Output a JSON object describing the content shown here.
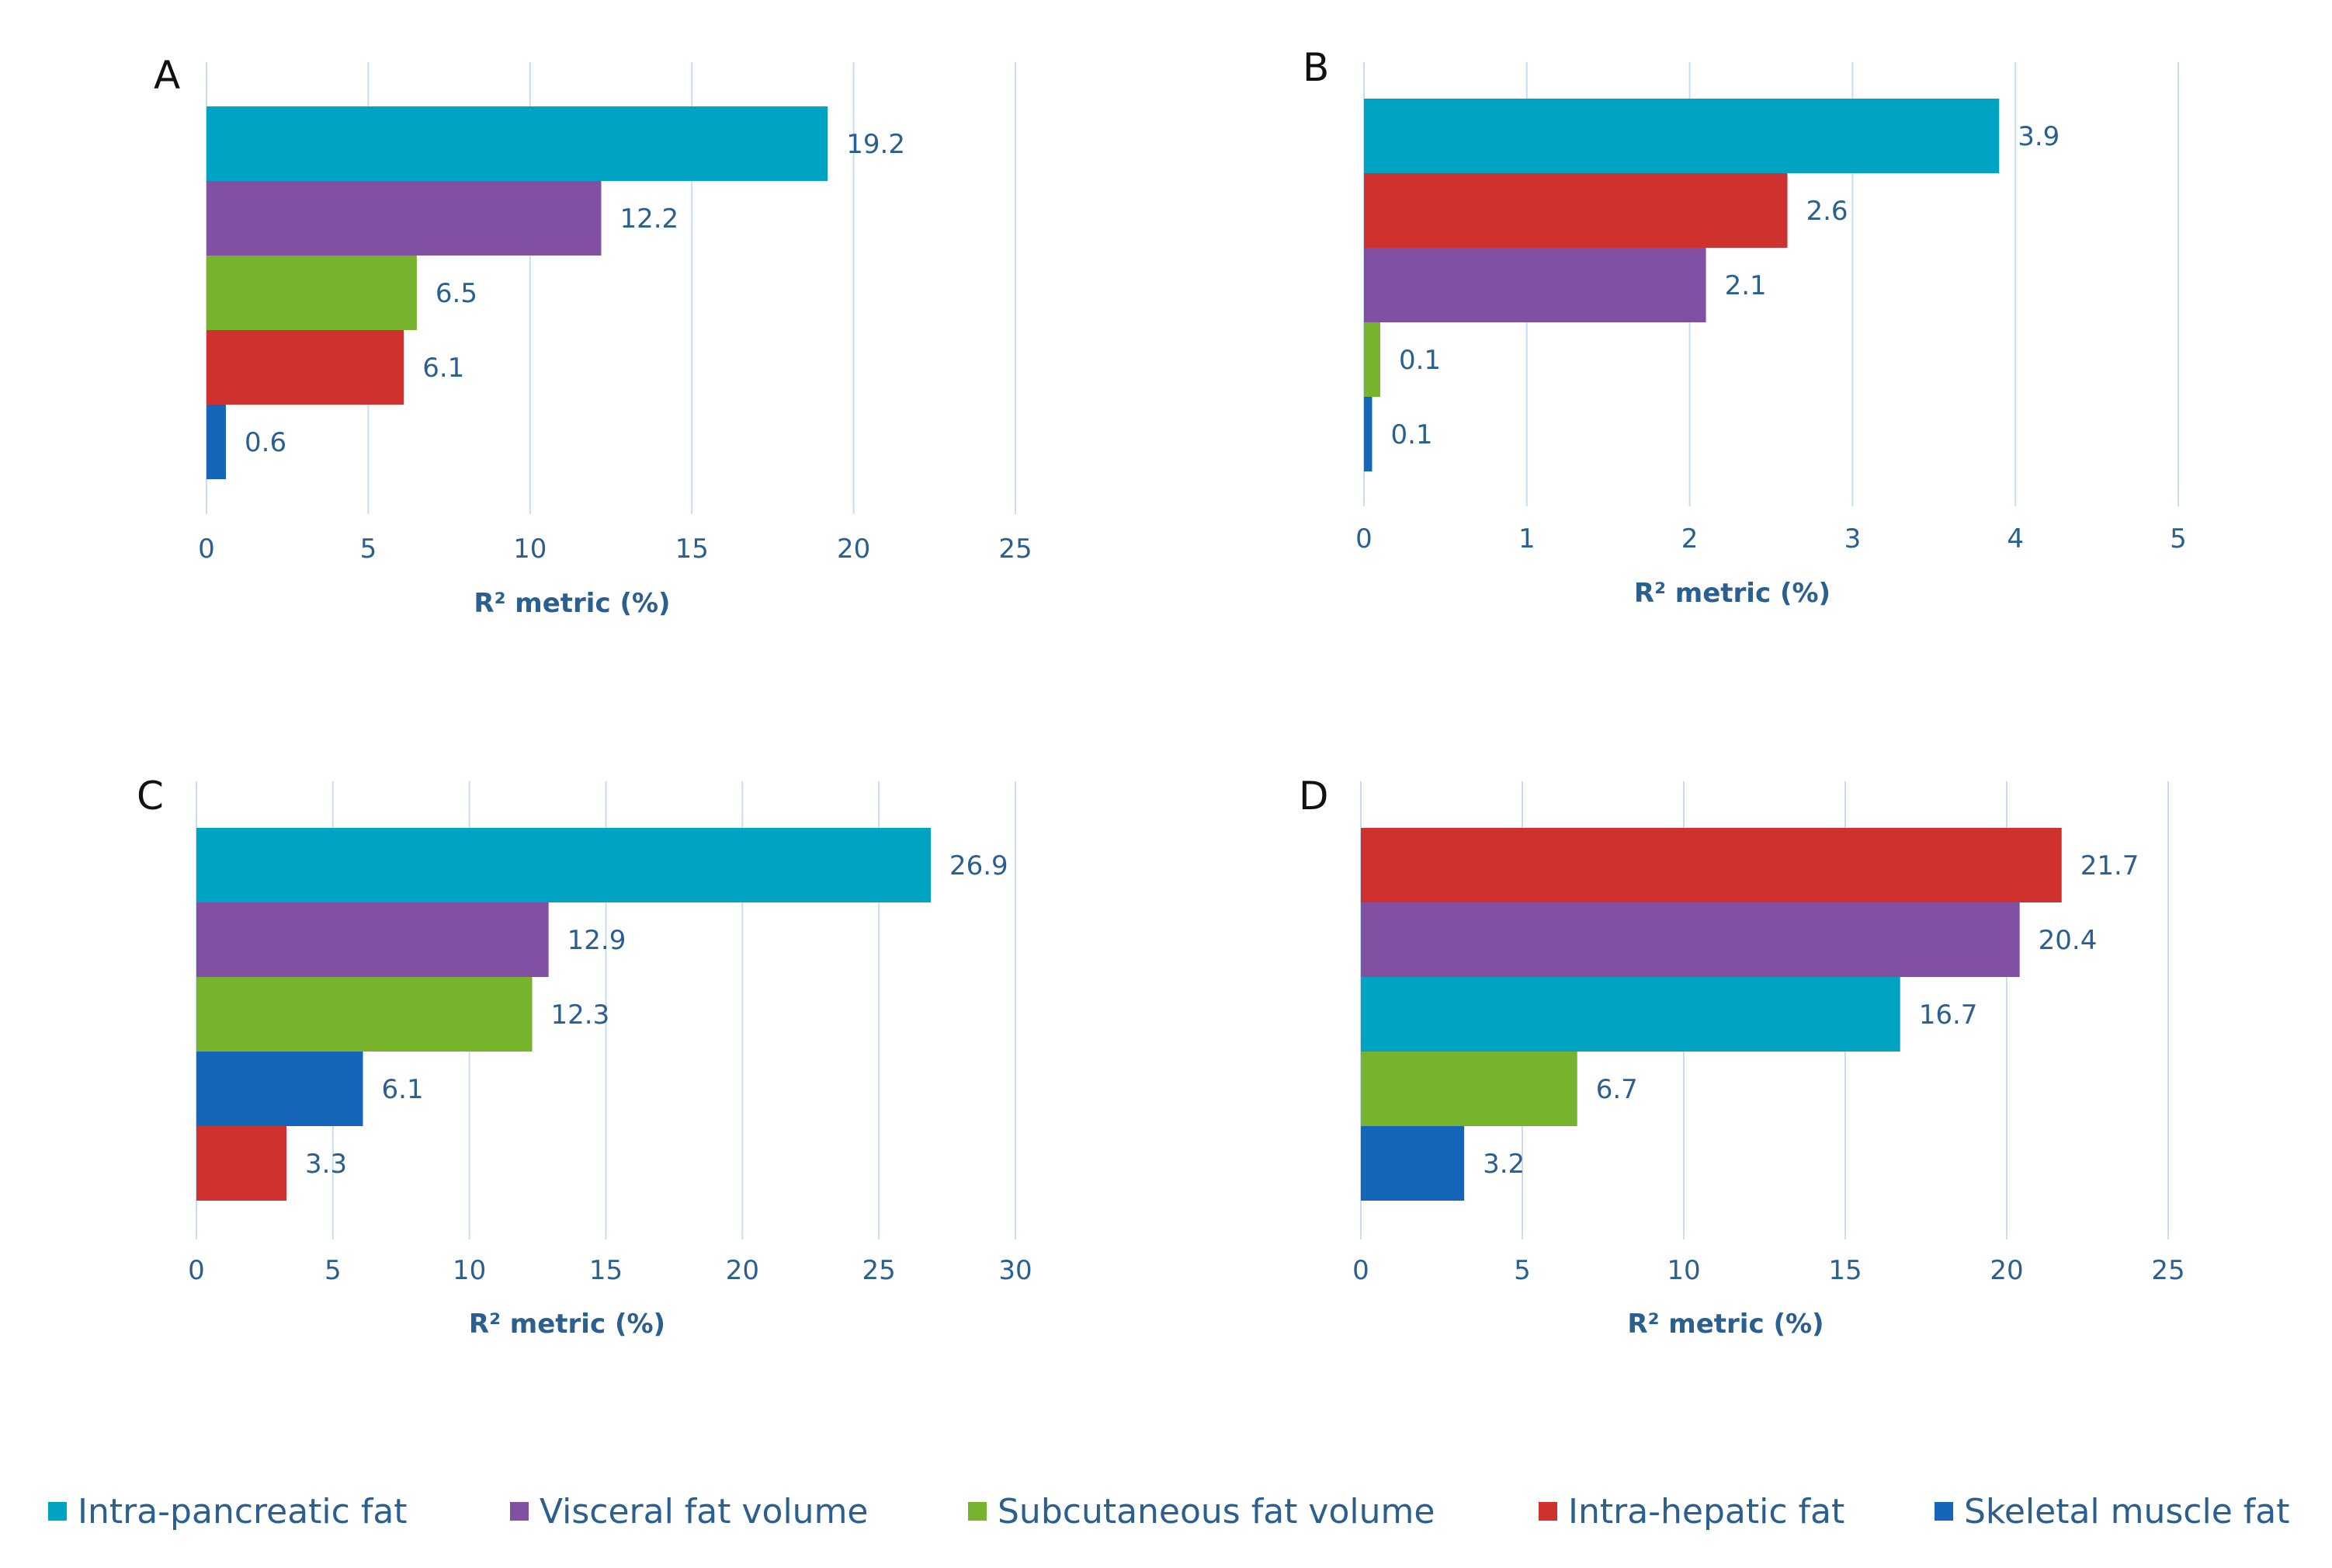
{
  "colors": {
    "intra_pancreatic": "#00a3c2",
    "visceral": "#8250a2",
    "subcutaneous": "#78b32e",
    "intra_hepatic": "#cf312e",
    "skeletal": "#1565b8",
    "grid": "#c9deef",
    "axis_text": "#2a5f8f"
  },
  "legend": [
    {
      "label": "Intra-pancreatic fat",
      "color": "#00a3c2"
    },
    {
      "label": "Visceral fat volume",
      "color": "#8250a2"
    },
    {
      "label": "Subcutaneous fat volume",
      "color": "#78b32e"
    },
    {
      "label": "Intra-hepatic fat",
      "color": "#cf312e"
    },
    {
      "label": "Skeletal muscle fat",
      "color": "#1565b8"
    }
  ],
  "chart_data": [
    {
      "panel": "A",
      "type": "bar",
      "orientation": "horizontal",
      "xlabel": "R² metric (%)",
      "xlim": [
        0,
        25
      ],
      "xticks": [
        0,
        5,
        10,
        15,
        20,
        25
      ],
      "grid": true,
      "bars": [
        {
          "series": "Intra-pancreatic fat",
          "value": 19.2,
          "label": "19.2",
          "color": "#00a3c2"
        },
        {
          "series": "Visceral fat volume",
          "value": 12.2,
          "label": "12.2",
          "color": "#8250a2"
        },
        {
          "series": "Subcutaneous fat volume",
          "value": 6.5,
          "label": "6.5",
          "color": "#78b32e"
        },
        {
          "series": "Intra-hepatic fat",
          "value": 6.1,
          "label": "6.1",
          "color": "#cf312e"
        },
        {
          "series": "Skeletal muscle fat",
          "value": 0.6,
          "label": "0.6",
          "color": "#1565b8"
        }
      ]
    },
    {
      "panel": "B",
      "type": "bar",
      "orientation": "horizontal",
      "xlabel": "R² metric (%)",
      "xlim": [
        0,
        5
      ],
      "xticks": [
        0,
        1,
        2,
        3,
        4,
        5
      ],
      "grid": true,
      "bars": [
        {
          "series": "Intra-pancreatic fat",
          "value": 3.9,
          "label": "3.9",
          "color": "#00a3c2"
        },
        {
          "series": "Intra-hepatic fat",
          "value": 2.6,
          "label": "2.6",
          "color": "#cf312e"
        },
        {
          "series": "Visceral fat volume",
          "value": 2.1,
          "label": "2.1",
          "color": "#8250a2"
        },
        {
          "series": "Subcutaneous fat volume",
          "value": 0.1,
          "label": "0.1",
          "color": "#78b32e"
        },
        {
          "series": "Skeletal muscle fat",
          "value": 0.05,
          "label": "0.1",
          "color": "#1565b8"
        }
      ]
    },
    {
      "panel": "C",
      "type": "bar",
      "orientation": "horizontal",
      "xlabel": "R² metric (%)",
      "xlim": [
        0,
        30
      ],
      "xticks": [
        0,
        5,
        10,
        15,
        20,
        25,
        30
      ],
      "grid": true,
      "bars": [
        {
          "series": "Intra-pancreatic fat",
          "value": 26.9,
          "label": "26.9",
          "color": "#00a3c2"
        },
        {
          "series": "Visceral fat volume",
          "value": 12.9,
          "label": "12.9",
          "color": "#8250a2"
        },
        {
          "series": "Subcutaneous fat volume",
          "value": 12.3,
          "label": "12.3",
          "color": "#78b32e"
        },
        {
          "series": "Skeletal muscle fat",
          "value": 6.1,
          "label": "6.1",
          "color": "#1565b8"
        },
        {
          "series": "Intra-hepatic fat",
          "value": 3.3,
          "label": "3.3",
          "color": "#cf312e"
        }
      ]
    },
    {
      "panel": "D",
      "type": "bar",
      "orientation": "horizontal",
      "xlabel": "R² metric (%)",
      "xlim": [
        0,
        25
      ],
      "xticks": [
        0,
        5,
        10,
        15,
        20,
        25
      ],
      "grid": true,
      "bars": [
        {
          "series": "Intra-hepatic fat",
          "value": 21.7,
          "label": "21.7",
          "color": "#cf312e"
        },
        {
          "series": "Visceral fat volume",
          "value": 20.4,
          "label": "20.4",
          "color": "#8250a2"
        },
        {
          "series": "Intra-pancreatic fat",
          "value": 16.7,
          "label": "16.7",
          "color": "#00a3c2"
        },
        {
          "series": "Subcutaneous fat volume",
          "value": 6.7,
          "label": "6.7",
          "color": "#78b32e"
        },
        {
          "series": "Skeletal muscle fat",
          "value": 3.2,
          "label": "3.2",
          "color": "#1565b8"
        }
      ]
    }
  ]
}
